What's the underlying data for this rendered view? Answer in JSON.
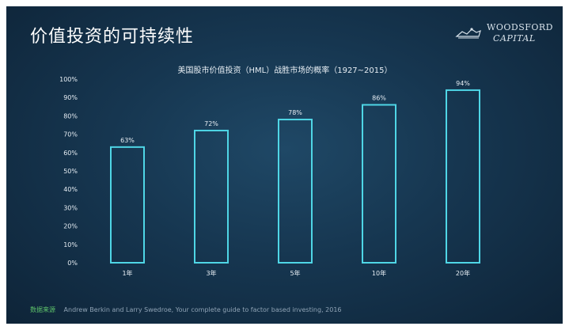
{
  "page": {
    "title": "价值投资的可持续性"
  },
  "logo": {
    "line1": "WOODSFORD",
    "line2": "CAPITAL"
  },
  "chart_data": {
    "type": "bar",
    "title": "美国股市价值投资（HML）战胜市场的概率（1927~2015）",
    "categories": [
      "1年",
      "3年",
      "5年",
      "10年",
      "20年"
    ],
    "values": [
      63,
      72,
      78,
      86,
      94
    ],
    "value_labels": [
      "63%",
      "72%",
      "78%",
      "86%",
      "94%"
    ],
    "ylim": [
      0,
      100
    ],
    "yticks": [
      "0%",
      "10%",
      "20%",
      "30%",
      "40%",
      "50%",
      "60%",
      "70%",
      "80%",
      "90%",
      "100%"
    ],
    "grid": false,
    "bar_color": "#4fd6e6"
  },
  "source": {
    "label": "数据来源",
    "text": "Andrew Berkin and Larry Swedroe, Your complete guide to factor based investing, 2016"
  }
}
